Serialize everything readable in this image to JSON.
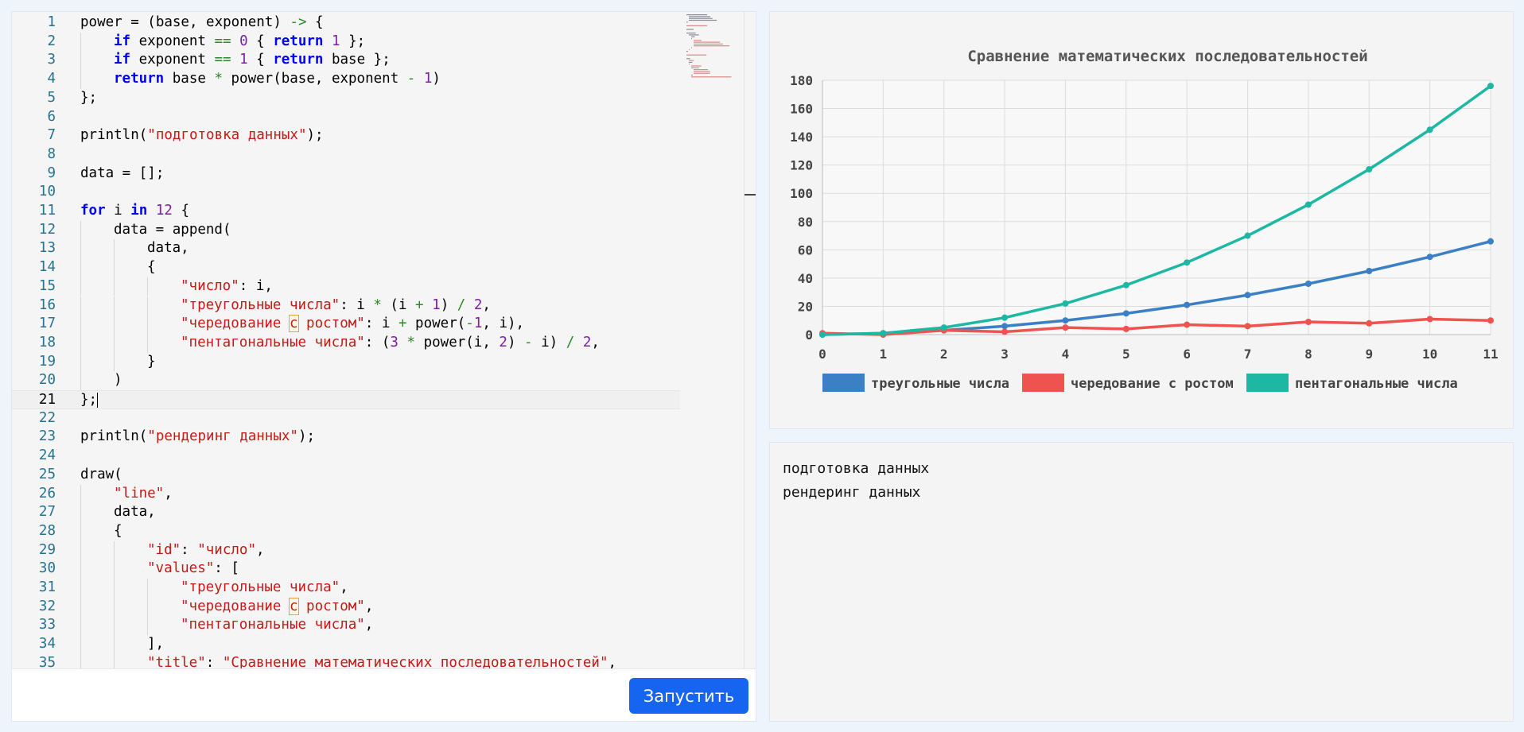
{
  "editor": {
    "lines": [
      {
        "n": "1",
        "indent": 0,
        "html": "power = (base, exponent) <span class='op'>-></span> {"
      },
      {
        "n": "2",
        "indent": 1,
        "html": "<span class='kw'>if</span> exponent <span class='op'>==</span> <span class='num'>0</span> { <span class='kw'>return</span> <span class='num'>1</span> };"
      },
      {
        "n": "3",
        "indent": 1,
        "html": "<span class='kw'>if</span> exponent <span class='op'>==</span> <span class='num'>1</span> { <span class='kw'>return</span> base };"
      },
      {
        "n": "4",
        "indent": 1,
        "html": "<span class='kw'>return</span> base <span class='op'>*</span> power(base, exponent <span class='op'>-</span> <span class='num'>1</span>)"
      },
      {
        "n": "5",
        "indent": 0,
        "html": "};"
      },
      {
        "n": "6",
        "indent": 0,
        "html": ""
      },
      {
        "n": "7",
        "indent": 0,
        "html": "println(<span class='str'>\"подготовка данных\"</span>);"
      },
      {
        "n": "8",
        "indent": 0,
        "html": ""
      },
      {
        "n": "9",
        "indent": 0,
        "html": "data = [];"
      },
      {
        "n": "10",
        "indent": 0,
        "html": ""
      },
      {
        "n": "11",
        "indent": 0,
        "html": "<span class='kw'>for</span> i <span class='kw'>in</span> <span class='num'>12</span> {"
      },
      {
        "n": "12",
        "indent": 1,
        "html": "data = append("
      },
      {
        "n": "13",
        "indent": 2,
        "html": "data,"
      },
      {
        "n": "14",
        "indent": 2,
        "html": "{"
      },
      {
        "n": "15",
        "indent": 3,
        "html": "<span class='str'>\"число\"</span>: i,"
      },
      {
        "n": "16",
        "indent": 3,
        "html": "<span class='str'>\"треугольные числа\"</span>: i <span class='op'>*</span> (i <span class='op'>+</span> <span class='num'>1</span>) <span class='op'>/</span> <span class='num'>2</span>,"
      },
      {
        "n": "17",
        "indent": 3,
        "html": "<span class='str'>\"чередование <span class='hl'>с</span> ростом\"</span>: i <span class='op'>+</span> power(<span class='op'>-</span><span class='num'>1</span>, i),"
      },
      {
        "n": "18",
        "indent": 3,
        "html": "<span class='str'>\"пентагональные числа\"</span>: (<span class='num'>3</span> <span class='op'>*</span> power(i, <span class='num'>2</span>) <span class='op'>-</span> i) <span class='op'>/</span> <span class='num'>2</span>,"
      },
      {
        "n": "19",
        "indent": 2,
        "html": "}"
      },
      {
        "n": "20",
        "indent": 1,
        "html": ")"
      },
      {
        "n": "21",
        "indent": 0,
        "html": "};<span class='cursor'></span>",
        "current": true
      },
      {
        "n": "22",
        "indent": 0,
        "html": ""
      },
      {
        "n": "23",
        "indent": 0,
        "html": "println(<span class='str'>\"рендеринг данных\"</span>);"
      },
      {
        "n": "24",
        "indent": 0,
        "html": ""
      },
      {
        "n": "25",
        "indent": 0,
        "html": "draw("
      },
      {
        "n": "26",
        "indent": 1,
        "html": "<span class='str'>\"line\"</span>,"
      },
      {
        "n": "27",
        "indent": 1,
        "html": "data,"
      },
      {
        "n": "28",
        "indent": 1,
        "html": "{"
      },
      {
        "n": "29",
        "indent": 2,
        "html": "<span class='str'>\"id\"</span>: <span class='str'>\"число\"</span>,"
      },
      {
        "n": "30",
        "indent": 2,
        "html": "<span class='str'>\"values\"</span>: ["
      },
      {
        "n": "31",
        "indent": 3,
        "html": "<span class='str'>\"треугольные числа\"</span>,"
      },
      {
        "n": "32",
        "indent": 3,
        "html": "<span class='str'>\"чередование <span class='hl'>с</span> ростом\"</span>,"
      },
      {
        "n": "33",
        "indent": 3,
        "html": "<span class='str'>\"пентагональные числа\"</span>,"
      },
      {
        "n": "34",
        "indent": 2,
        "html": "],"
      },
      {
        "n": "35",
        "indent": 2,
        "html": "<span class='str'>\"title\"</span>: <span class='str'>\"Сравнение математических последовательностей\"</span>,"
      }
    ]
  },
  "toolbar": {
    "run_label": "Запустить"
  },
  "console": {
    "lines": [
      "подготовка данных",
      "рендеринг данных"
    ]
  },
  "colors": {
    "series1": "#3b7fc4",
    "series2": "#ef5350",
    "series3": "#1db8a4",
    "run_button": "#1565f0"
  },
  "chart_data": {
    "type": "line",
    "title": "Сравнение математических последовательностей",
    "x": [
      0,
      1,
      2,
      3,
      4,
      5,
      6,
      7,
      8,
      9,
      10,
      11
    ],
    "xlim": [
      0,
      11
    ],
    "ylim": [
      0,
      180
    ],
    "yticks": [
      0,
      20,
      40,
      60,
      80,
      100,
      120,
      140,
      160,
      180
    ],
    "grid": true,
    "legend_position": "bottom",
    "series": [
      {
        "name": "треугольные числа",
        "color": "#3b7fc4",
        "values": [
          0,
          1,
          3,
          6,
          10,
          15,
          21,
          28,
          36,
          45,
          55,
          66
        ]
      },
      {
        "name": "чередование с ростом",
        "color": "#ef5350",
        "values": [
          1,
          0,
          3,
          2,
          5,
          4,
          7,
          6,
          9,
          8,
          11,
          10
        ]
      },
      {
        "name": "пентагональные числа",
        "color": "#1db8a4",
        "values": [
          0,
          1,
          5,
          12,
          22,
          35,
          51,
          70,
          92,
          117,
          145,
          176
        ]
      }
    ]
  }
}
